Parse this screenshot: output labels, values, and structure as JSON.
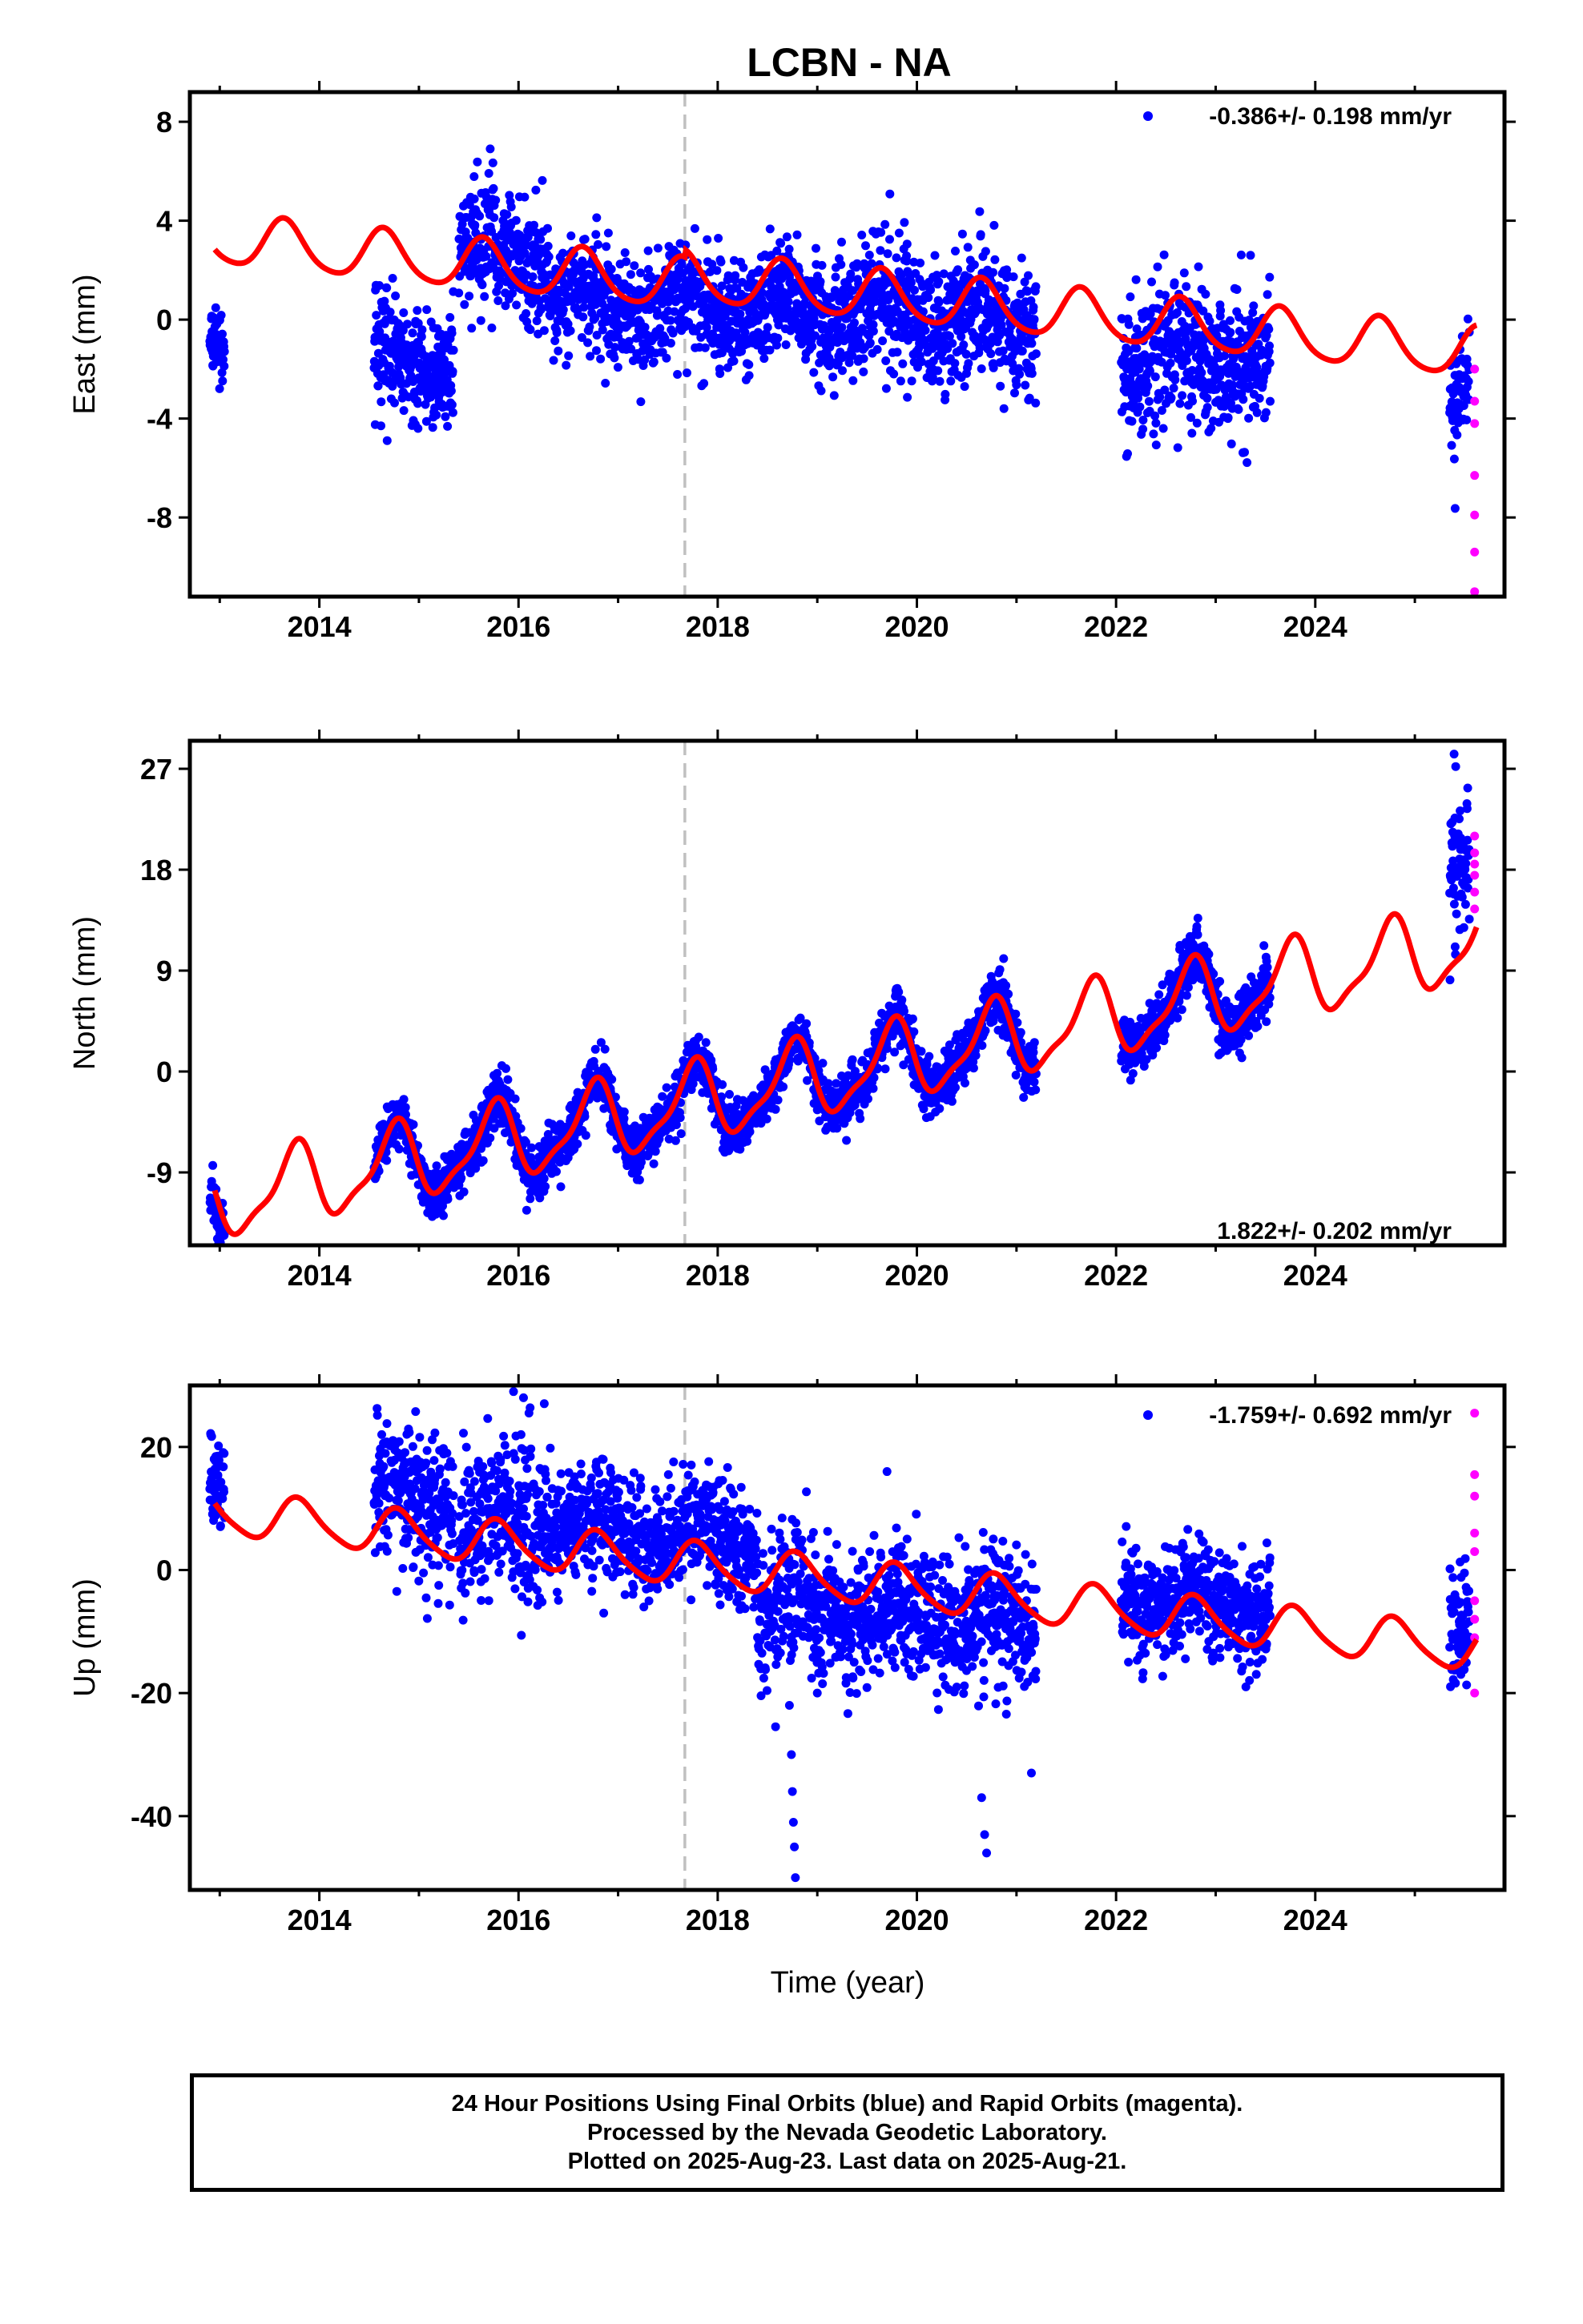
{
  "title": "LCBN - NA",
  "xlabel": "Time (year)",
  "colors": {
    "final": "#0000ff",
    "rapid": "#ff00ff",
    "model": "#ff0000",
    "marker": "#c0c0c0"
  },
  "footer": {
    "line1": "24 Hour Positions Using Final Orbits (blue) and Rapid Orbits (magenta).",
    "line2": "Processed by the Nevada Geodetic Laboratory.",
    "line3": "Plotted on 2025-Aug-23. Last data on 2025-Aug-21."
  },
  "chart_data": [
    {
      "type": "scatter",
      "panel": "east",
      "ylabel": "East (mm)",
      "xlim": [
        2012.7,
        2025.9
      ],
      "ylim": [
        -11.2,
        9.2
      ],
      "xticks": [
        2014,
        2016,
        2018,
        2020,
        2022,
        2024
      ],
      "yticks": [
        -8,
        -4,
        0,
        4,
        8
      ],
      "rate_label": "-0.386+/- 0.198 mm/yr",
      "equipment_change": 2017.67,
      "model": {
        "intercept": 0.9,
        "rate": -0.386,
        "ref_year": 2019.0,
        "annual_amp": 1.0,
        "annual_phase": 0.4,
        "semiannual_amp": 0.15,
        "semiannual_phase": 0.0,
        "offset_at": 2017.67,
        "offset": 0.3
      },
      "segments": [
        {
          "start": 2012.9,
          "end": 2013.05,
          "level": -1.1,
          "spread": 0.8
        },
        {
          "start": 2014.55,
          "end": 2015.35,
          "level": -2.0,
          "spread": 1.1
        },
        {
          "start": 2015.4,
          "end": 2016.3,
          "level": 2.8,
          "spread": 1.3
        },
        {
          "start": 2016.3,
          "end": 2019.0,
          "level": 1.2,
          "spread": 1.1
        },
        {
          "start": 2019.0,
          "end": 2021.2,
          "level": -0.3,
          "spread": 1.3
        },
        {
          "start": 2022.05,
          "end": 2023.55,
          "level": -1.3,
          "spread": 1.4
        },
        {
          "start": 2025.35,
          "end": 2025.55,
          "level": -2.8,
          "spread": 1.3
        }
      ],
      "rapid": [
        {
          "x": 2025.6,
          "y": -2.0
        },
        {
          "x": 2025.6,
          "y": -3.3
        },
        {
          "x": 2025.6,
          "y": -4.2
        },
        {
          "x": 2025.6,
          "y": -6.3
        },
        {
          "x": 2025.6,
          "y": -7.9
        },
        {
          "x": 2025.6,
          "y": -9.4
        },
        {
          "x": 2025.6,
          "y": -11.0
        }
      ]
    },
    {
      "type": "scatter",
      "panel": "north",
      "ylabel": "North (mm)",
      "xlim": [
        2012.7,
        2025.9
      ],
      "ylim": [
        -15.5,
        29.5
      ],
      "xticks": [
        2014,
        2016,
        2018,
        2020,
        2022,
        2024
      ],
      "yticks": [
        -9,
        0,
        9,
        18,
        27
      ],
      "rate_label": "1.822+/- 0.202 mm/yr",
      "equipment_change": 2017.67,
      "model": {
        "intercept": -0.6,
        "rate": 1.822,
        "ref_year": 2019.0,
        "annual_amp": 3.3,
        "annual_phase": 0.5,
        "semiannual_amp": 1.0,
        "semiannual_phase": 0.2,
        "offset_at": 2017.67,
        "offset": 0.0
      },
      "segments": [
        {
          "start": 2012.9,
          "end": 2013.05,
          "level": -12.8,
          "spread": 1.2
        },
        {
          "start": 2014.55,
          "end": 2021.2,
          "level": 0.0,
          "spread": 1.2
        },
        {
          "start": 2022.05,
          "end": 2023.55,
          "level": 0.0,
          "spread": 1.3
        },
        {
          "start": 2025.35,
          "end": 2025.55,
          "level": 18.0,
          "spread": 3.5
        }
      ],
      "rapid": [
        {
          "x": 2025.6,
          "y": 14.5
        },
        {
          "x": 2025.6,
          "y": 16.0
        },
        {
          "x": 2025.6,
          "y": 17.5
        },
        {
          "x": 2025.6,
          "y": 18.5
        },
        {
          "x": 2025.6,
          "y": 19.5
        },
        {
          "x": 2025.6,
          "y": 21.0
        }
      ]
    },
    {
      "type": "scatter",
      "panel": "up",
      "ylabel": "Up (mm)",
      "xlim": [
        2012.7,
        2025.9
      ],
      "ylim": [
        -52,
        30
      ],
      "xticks": [
        2014,
        2016,
        2018,
        2020,
        2022,
        2024
      ],
      "yticks": [
        -40,
        -20,
        0,
        20
      ],
      "rate_label": "-1.759+/- 0.692 mm/yr",
      "equipment_change": 2017.67,
      "model": {
        "intercept": -1.3,
        "rate": -1.759,
        "ref_year": 2019.0,
        "annual_amp": 3.5,
        "annual_phase": 0.55,
        "semiannual_amp": 0.6,
        "semiannual_phase": 0.1,
        "offset_at": 2017.67,
        "offset": 0.0
      },
      "segments": [
        {
          "start": 2012.9,
          "end": 2013.05,
          "level": 15.0,
          "spread": 4.5
        },
        {
          "start": 2014.55,
          "end": 2015.35,
          "level": 12.0,
          "spread": 6.0
        },
        {
          "start": 2015.4,
          "end": 2016.3,
          "level": 10.0,
          "spread": 6.5
        },
        {
          "start": 2016.3,
          "end": 2018.4,
          "level": 4.0,
          "spread": 4.5
        },
        {
          "start": 2018.4,
          "end": 2021.2,
          "level": -5.0,
          "spread": 5.5
        },
        {
          "start": 2022.05,
          "end": 2023.55,
          "level": -3.0,
          "spread": 4.5
        },
        {
          "start": 2025.35,
          "end": 2025.55,
          "level": -10.0,
          "spread": 5.0
        }
      ],
      "outliers": [
        {
          "x": 2018.72,
          "y": -22
        },
        {
          "x": 2018.74,
          "y": -30
        },
        {
          "x": 2018.75,
          "y": -36
        },
        {
          "x": 2018.76,
          "y": -41
        },
        {
          "x": 2018.77,
          "y": -45
        },
        {
          "x": 2018.78,
          "y": -50
        },
        {
          "x": 2020.65,
          "y": -37
        },
        {
          "x": 2020.68,
          "y": -43
        },
        {
          "x": 2020.7,
          "y": -46
        },
        {
          "x": 2021.15,
          "y": -33
        },
        {
          "x": 2019.0,
          "y": -20
        },
        {
          "x": 2019.7,
          "y": 16
        },
        {
          "x": 2015.95,
          "y": 29
        },
        {
          "x": 2016.05,
          "y": 28
        }
      ],
      "rapid": [
        {
          "x": 2025.6,
          "y": 25.5
        },
        {
          "x": 2025.6,
          "y": 15.5
        },
        {
          "x": 2025.6,
          "y": 12.0
        },
        {
          "x": 2025.6,
          "y": 6.0
        },
        {
          "x": 2025.6,
          "y": 3.0
        },
        {
          "x": 2025.6,
          "y": -5.0
        },
        {
          "x": 2025.6,
          "y": -8.0
        },
        {
          "x": 2025.6,
          "y": -11.0
        },
        {
          "x": 2025.6,
          "y": -20.0
        }
      ]
    }
  ]
}
